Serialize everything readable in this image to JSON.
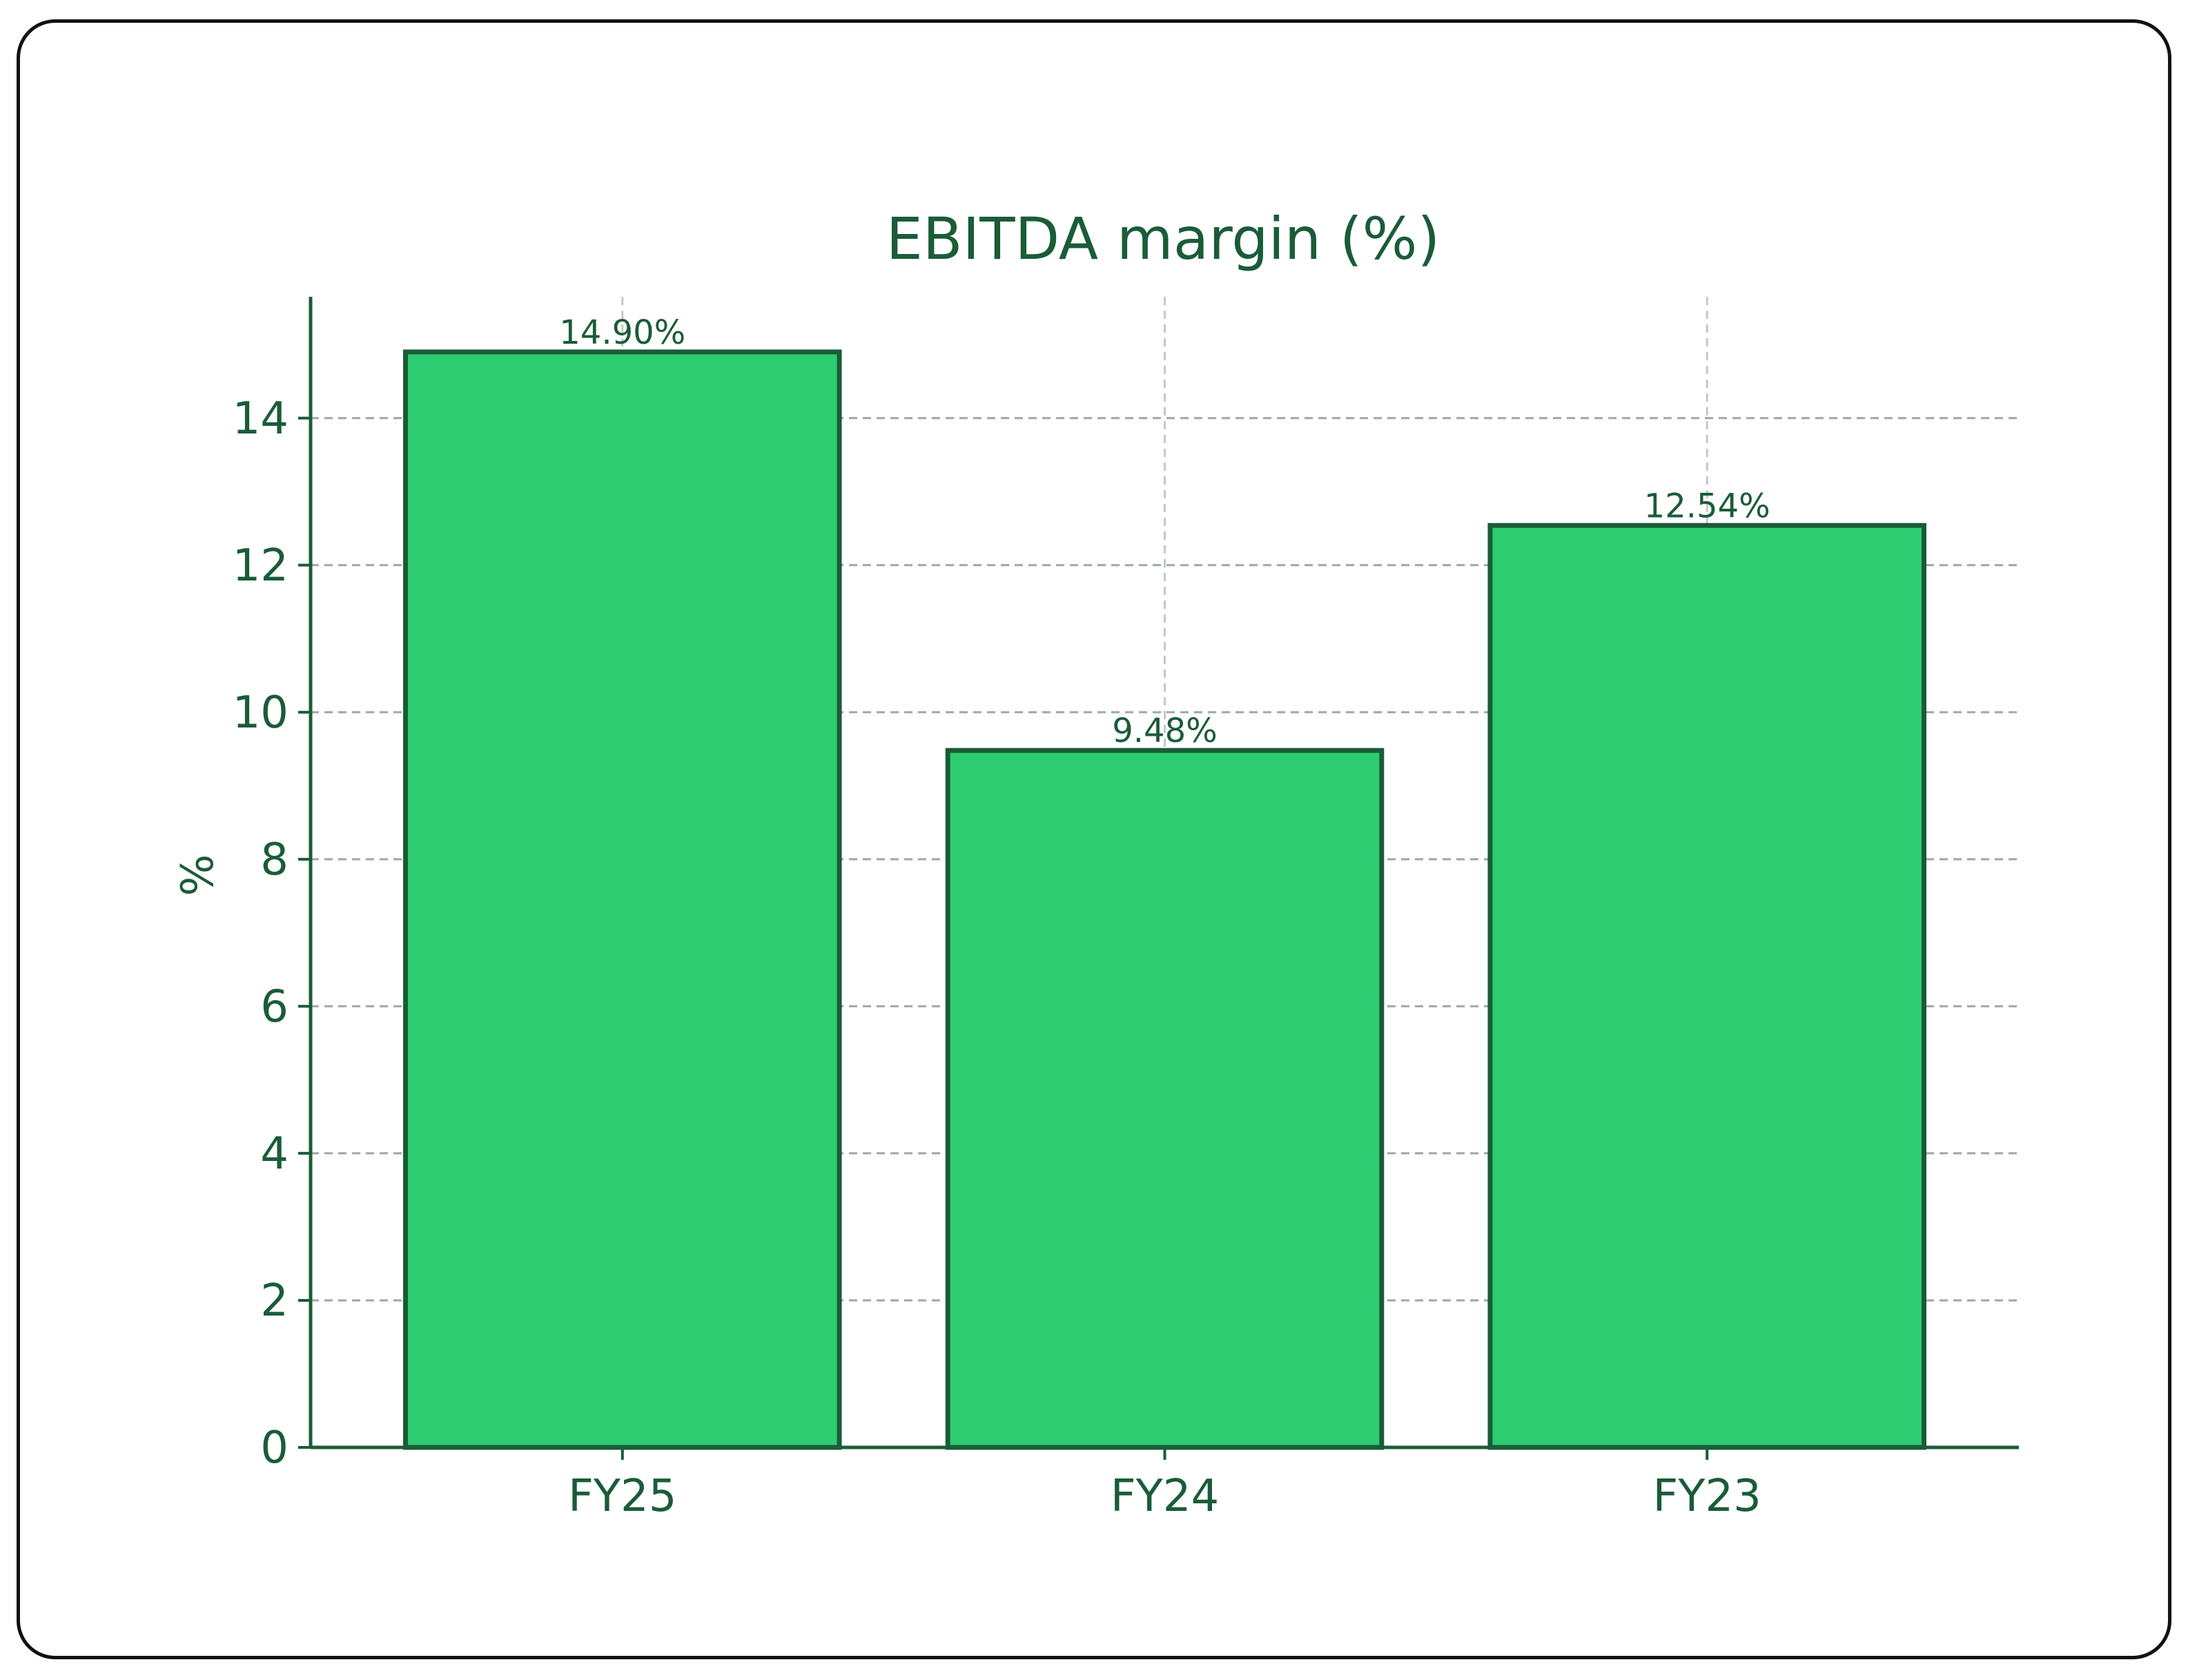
{
  "chart_data": {
    "type": "bar",
    "title": "EBITDA margin (%)",
    "xlabel": "",
    "ylabel": "%",
    "categories": [
      "FY25",
      "FY24",
      "FY23"
    ],
    "values": [
      14.9,
      9.48,
      12.54
    ],
    "data_labels": [
      "14.90%",
      "9.48%",
      "12.54%"
    ],
    "ylim": [
      0,
      15.65
    ],
    "yticks": [
      0,
      2,
      4,
      6,
      8,
      10,
      12,
      14
    ],
    "grid": true,
    "colors": {
      "bar_fill": "#2ecc71",
      "bar_edge": "#1a5c38",
      "text": "#1a5c38",
      "grid": "#9aa8a8"
    }
  }
}
